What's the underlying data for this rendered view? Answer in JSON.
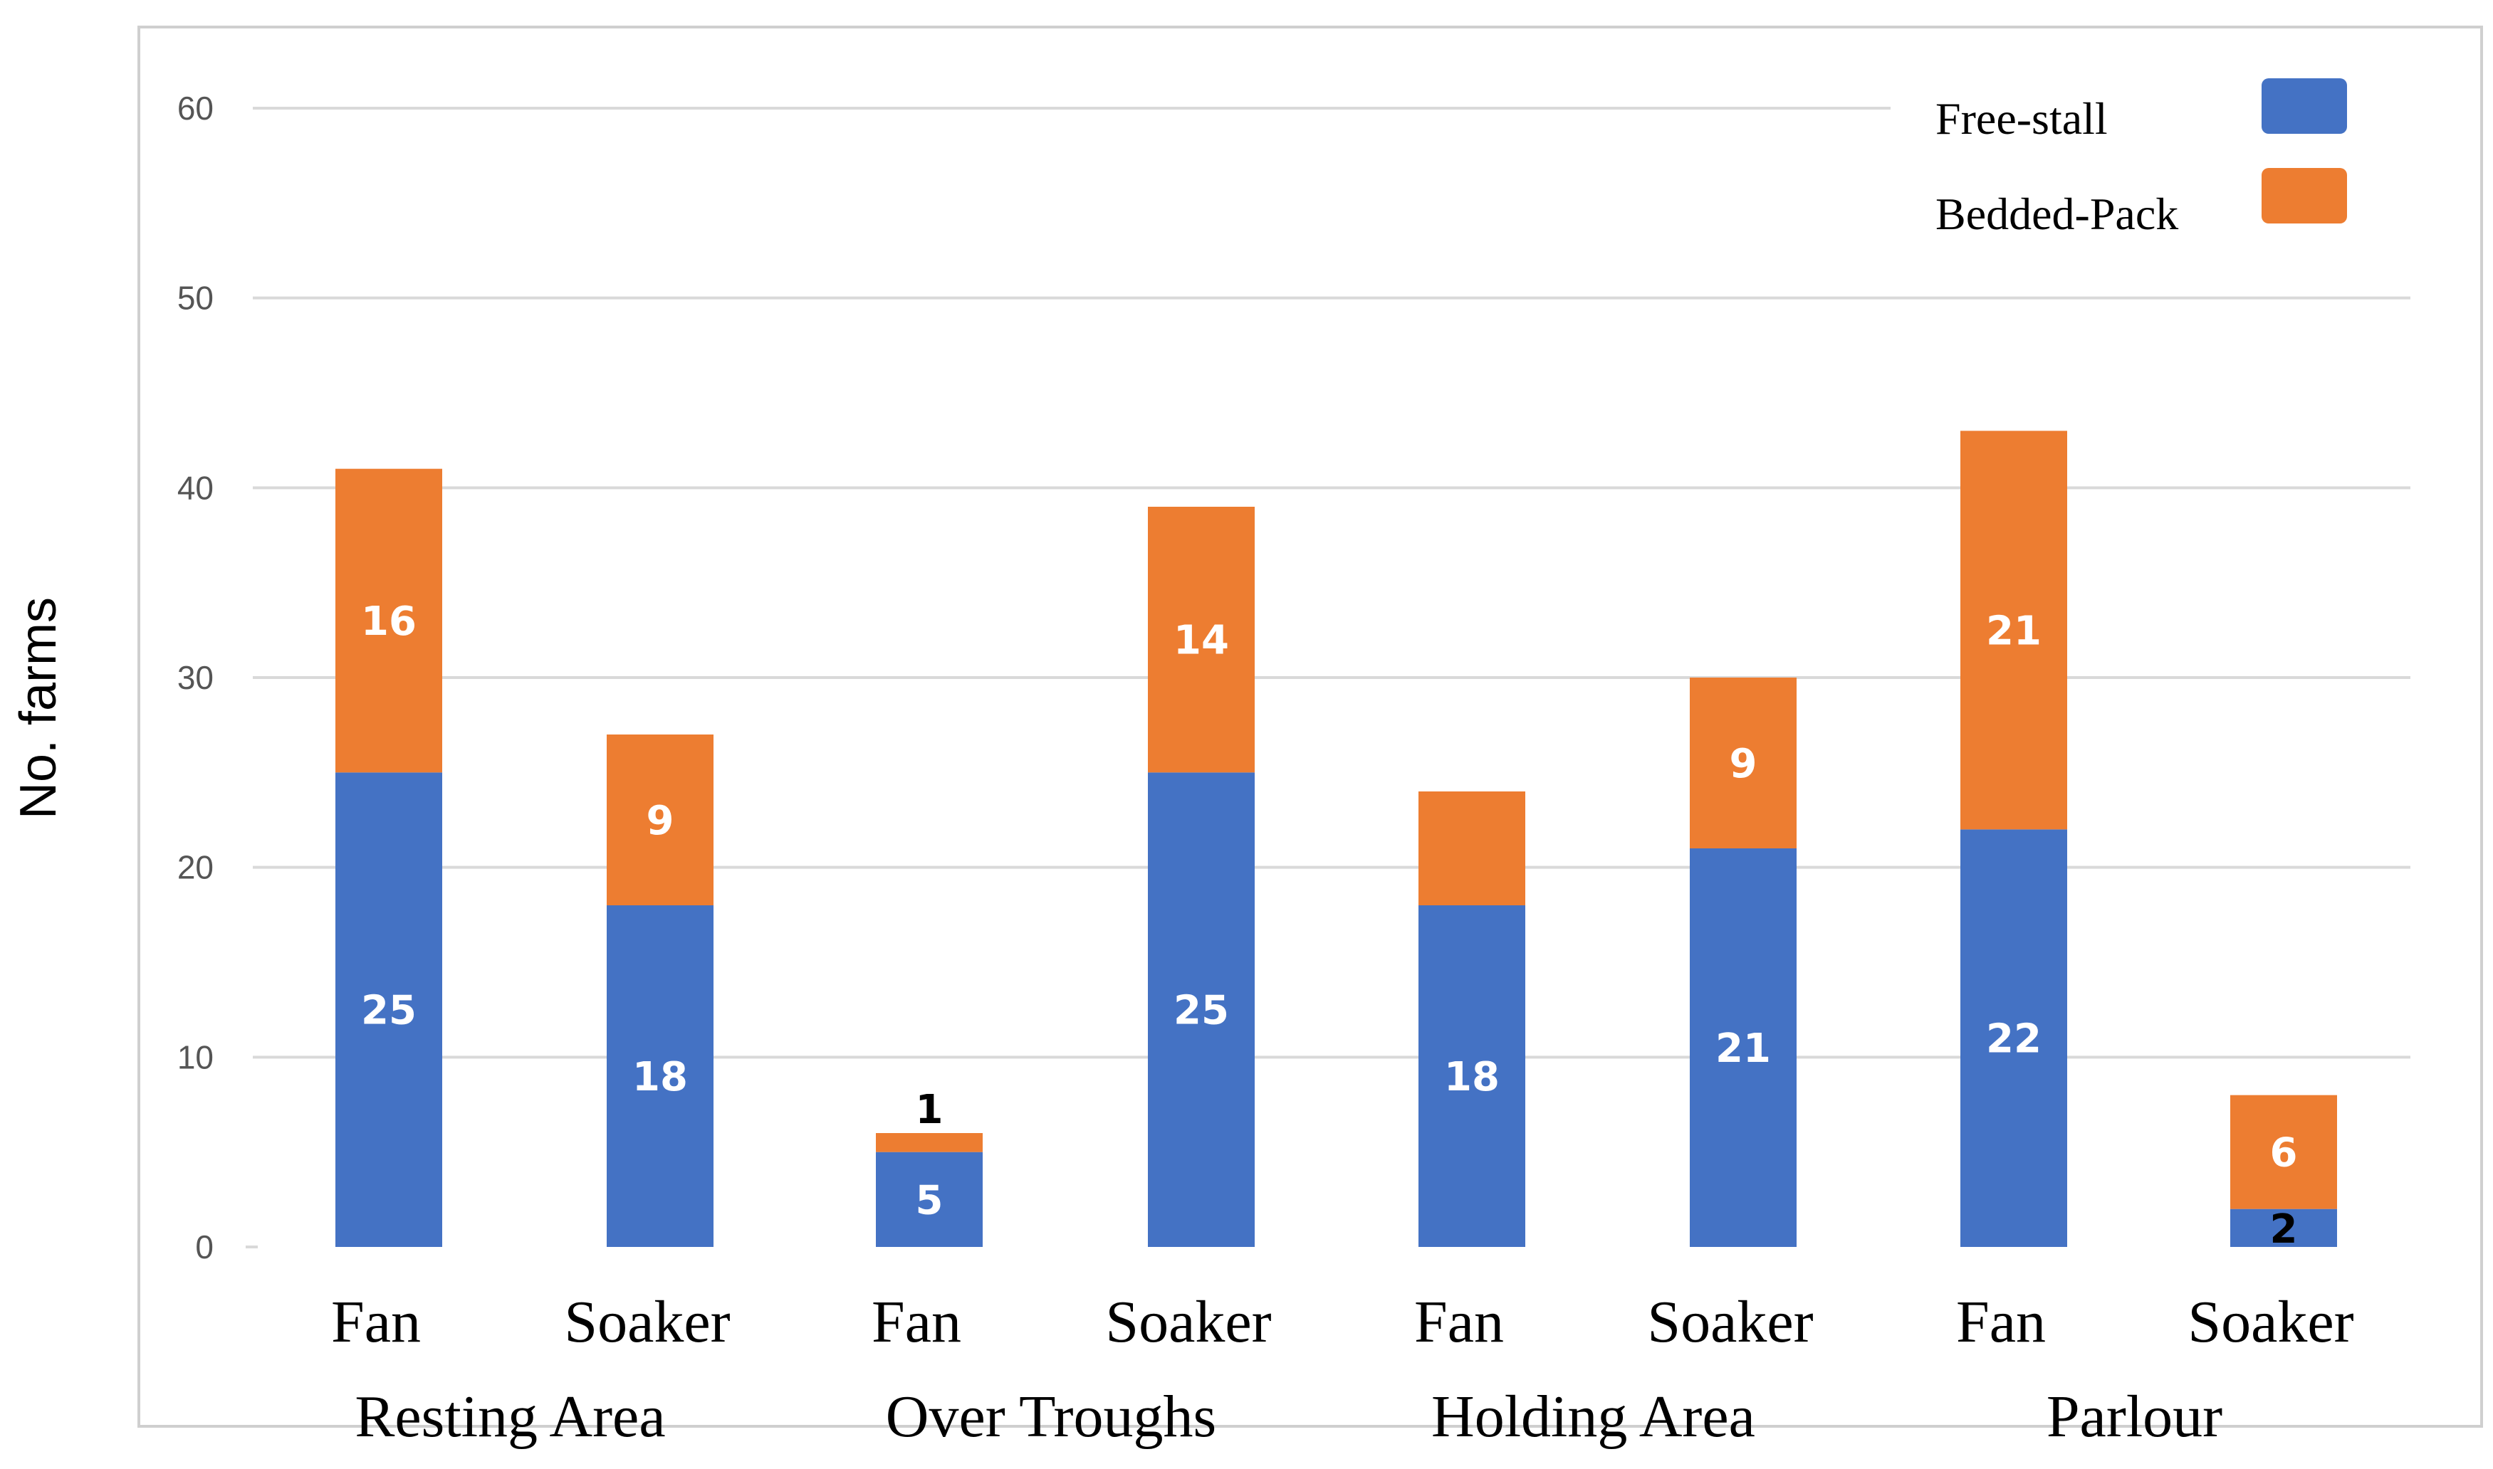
{
  "chart_data": {
    "type": "bar",
    "stacked": true,
    "title": "",
    "xlabel": "",
    "ylabel": "No. farms",
    "ylim": [
      0,
      60
    ],
    "yticks": [
      0,
      10,
      20,
      30,
      40,
      50,
      60
    ],
    "grid": true,
    "legend_position": "top-right",
    "categories": [
      "Fan",
      "Soaker",
      "Fan",
      "Soaker",
      "Fan",
      "Soaker",
      "Fan",
      "Soaker"
    ],
    "groups": [
      {
        "label": "Resting Area",
        "span": [
          0,
          1
        ]
      },
      {
        "label": "Over Troughs",
        "span": [
          2,
          3
        ]
      },
      {
        "label": "Holding Area",
        "span": [
          4,
          5
        ]
      },
      {
        "label": "Parlour",
        "span": [
          6,
          7
        ]
      }
    ],
    "series": [
      {
        "name": "Free-stall",
        "color": "#4472C4",
        "values": [
          25,
          18,
          5,
          25,
          18,
          21,
          22,
          2
        ],
        "labels": [
          "25",
          "18",
          "5",
          "25",
          "18",
          "21",
          "22",
          "2"
        ]
      },
      {
        "name": "Bedded-Pack",
        "color": "#ED7D31",
        "values": [
          16,
          9,
          1,
          14,
          6,
          9,
          21,
          6
        ],
        "labels": [
          "16",
          "9",
          "1",
          "14",
          "",
          "9",
          "21",
          "6"
        ]
      }
    ]
  }
}
